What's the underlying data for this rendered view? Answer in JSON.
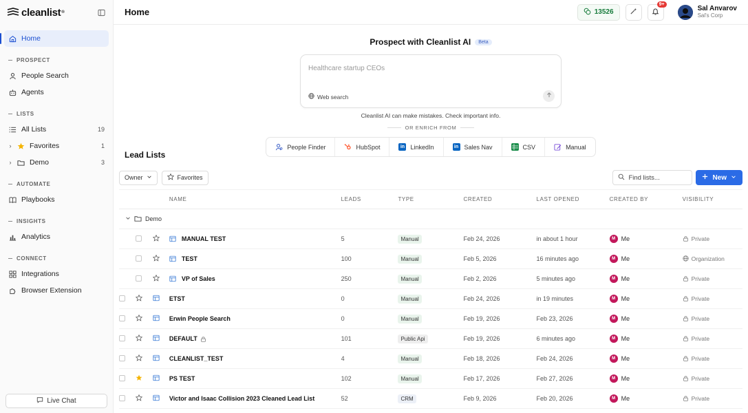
{
  "brand": {
    "name": "cleanlist",
    "reg": "®"
  },
  "sidebar": {
    "home": "Home",
    "sections": {
      "prospect": "PROSPECT",
      "lists": "LISTS",
      "automate": "AUTOMATE",
      "insights": "INSIGHTS",
      "connect": "CONNECT"
    },
    "people_search": "People Search",
    "agents": "Agents",
    "all_lists": {
      "label": "All Lists",
      "count": "19"
    },
    "favorites": {
      "label": "Favorites",
      "count": "1"
    },
    "demo": {
      "label": "Demo",
      "count": "3"
    },
    "playbooks": "Playbooks",
    "analytics": "Analytics",
    "integrations": "Integrations",
    "browser_extension": "Browser Extension",
    "live_chat": "Live Chat"
  },
  "header": {
    "title": "Home",
    "credits": "13526",
    "notifications": "9+",
    "user_name": "Sal Anvarov",
    "user_org": "Sal's Corp"
  },
  "prospect": {
    "title": "Prospect with Cleanlist AI",
    "beta": "Beta",
    "placeholder": "Healthcare startup CEOs",
    "web_search": "Web search",
    "disclaimer": "Cleanlist AI can make mistakes. Check important info.",
    "enrich_from": "OR ENRICH FROM",
    "sources": [
      "People Finder",
      "HubSpot",
      "LinkedIn",
      "Sales Nav",
      "CSV",
      "Manual"
    ]
  },
  "lead_lists": {
    "title": "Lead Lists",
    "owner": "Owner",
    "favorites": "Favorites",
    "find_placeholder": "Find lists...",
    "new": "New",
    "columns": {
      "name": "NAME",
      "leads": "LEADS",
      "type": "TYPE",
      "created": "CREATED",
      "last_opened": "LAST OPENED",
      "created_by": "CREATED BY",
      "visibility": "VISIBILITY"
    },
    "group": "Demo",
    "rows": [
      {
        "name": "MANUAL TEST",
        "leads": "5",
        "type": "Manual",
        "created": "Feb 24, 2026",
        "last_opened": "in about 1 hour",
        "creator_initial": "M",
        "creator": "Me",
        "visibility": "Private"
      },
      {
        "name": "TEST",
        "leads": "100",
        "type": "Manual",
        "created": "Feb 5, 2026",
        "last_opened": "16 minutes ago",
        "creator_initial": "M",
        "creator": "Me",
        "visibility": "Organization"
      },
      {
        "name": "VP of Sales",
        "leads": "250",
        "type": "Manual",
        "created": "Feb 2, 2026",
        "last_opened": "5 minutes ago",
        "creator_initial": "M",
        "creator": "Me",
        "visibility": "Private"
      },
      {
        "name": "ETST",
        "leads": "0",
        "type": "Manual",
        "created": "Feb 24, 2026",
        "last_opened": "in 19 minutes",
        "creator_initial": "M",
        "creator": "Me",
        "visibility": "Private"
      },
      {
        "name": "Erwin People Search",
        "leads": "0",
        "type": "Manual",
        "created": "Feb 19, 2026",
        "last_opened": "Feb 23, 2026",
        "creator_initial": "M",
        "creator": "Me",
        "visibility": "Private"
      },
      {
        "name": "DEFAULT",
        "leads": "101",
        "type": "Public Api",
        "created": "Feb 19, 2026",
        "last_opened": "6 minutes ago",
        "creator_initial": "M",
        "creator": "Me",
        "visibility": "Private"
      },
      {
        "name": "CLEANLIST_TEST",
        "leads": "4",
        "type": "Manual",
        "created": "Feb 18, 2026",
        "last_opened": "Feb 24, 2026",
        "creator_initial": "M",
        "creator": "Me",
        "visibility": "Private"
      },
      {
        "name": "PS TEST",
        "leads": "102",
        "type": "Manual",
        "created": "Feb 17, 2026",
        "last_opened": "Feb 27, 2026",
        "creator_initial": "M",
        "creator": "Me",
        "visibility": "Private"
      },
      {
        "name": "Victor and Isaac Collision 2023 Cleaned Lead List",
        "leads": "52",
        "type": "CRM",
        "created": "Feb 9, 2026",
        "last_opened": "Feb 20, 2026",
        "creator_initial": "M",
        "creator": "Me",
        "visibility": "Private"
      }
    ]
  }
}
